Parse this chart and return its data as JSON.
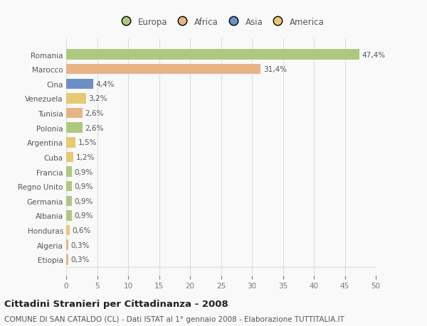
{
  "countries": [
    "Romania",
    "Marocco",
    "Cina",
    "Venezuela",
    "Tunisia",
    "Polonia",
    "Argentina",
    "Cuba",
    "Francia",
    "Regno Unito",
    "Germania",
    "Albania",
    "Honduras",
    "Algeria",
    "Etiopia"
  ],
  "values": [
    47.4,
    31.4,
    4.4,
    3.2,
    2.6,
    2.6,
    1.5,
    1.2,
    0.9,
    0.9,
    0.9,
    0.9,
    0.6,
    0.3,
    0.3
  ],
  "labels": [
    "47,4%",
    "31,4%",
    "4,4%",
    "3,2%",
    "2,6%",
    "2,6%",
    "1,5%",
    "1,2%",
    "0,9%",
    "0,9%",
    "0,9%",
    "0,9%",
    "0,6%",
    "0,3%",
    "0,3%"
  ],
  "colors": [
    "#adc97f",
    "#e8b484",
    "#6b8fc7",
    "#e8c870",
    "#e8b484",
    "#adc97f",
    "#e8c870",
    "#e8c870",
    "#adc97f",
    "#adc97f",
    "#adc97f",
    "#adc97f",
    "#e8c870",
    "#e8b484",
    "#e8b484"
  ],
  "legend_labels": [
    "Europa",
    "Africa",
    "Asia",
    "America"
  ],
  "legend_colors": [
    "#adc97f",
    "#e8b484",
    "#6b8fc7",
    "#e8c870"
  ],
  "xlim": [
    0,
    50
  ],
  "xticks": [
    0,
    5,
    10,
    15,
    20,
    25,
    30,
    35,
    40,
    45,
    50
  ],
  "title": "Cittadini Stranieri per Cittadinanza - 2008",
  "subtitle": "COMUNE DI SAN CATALDO (CL) - Dati ISTAT al 1° gennaio 2008 - Elaborazione TUTTITALIA.IT",
  "bg_color": "#f9f9f9",
  "grid_color": "#dddddd",
  "bar_height": 0.7,
  "label_fontsize": 7.5,
  "tick_fontsize": 7.5,
  "title_fontsize": 9.5,
  "subtitle_fontsize": 7.5
}
